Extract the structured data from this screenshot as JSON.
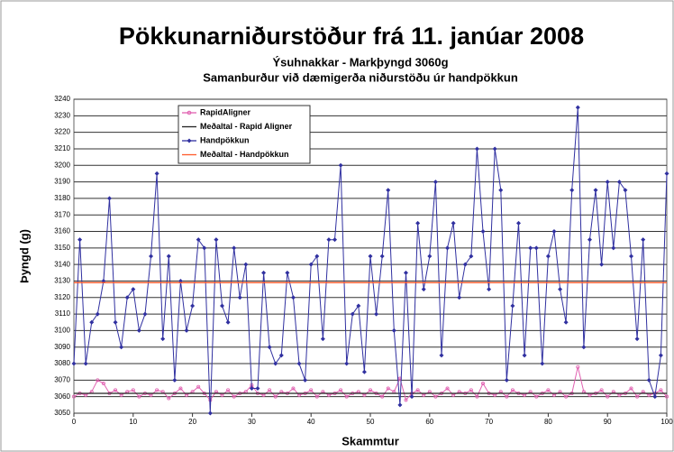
{
  "chart_data": {
    "type": "line",
    "title": "Pökkunarniðurstöður frá 11. janúar 2008",
    "subtitle": [
      "Ýsuhnakkar - Markþyngd 3060g",
      "Samanburður við dæmigerða niðurstöðu úr handpökkun"
    ],
    "xlabel": "Skammtur",
    "ylabel": "Þyngd (g)",
    "x": [
      0,
      1,
      2,
      3,
      4,
      5,
      6,
      7,
      8,
      9,
      10,
      11,
      12,
      13,
      14,
      15,
      16,
      17,
      18,
      19,
      20,
      21,
      22,
      23,
      24,
      25,
      26,
      27,
      28,
      29,
      30,
      31,
      32,
      33,
      34,
      35,
      36,
      37,
      38,
      39,
      40,
      41,
      42,
      43,
      44,
      45,
      46,
      47,
      48,
      49,
      50,
      51,
      52,
      53,
      54,
      55,
      56,
      57,
      58,
      59,
      60,
      61,
      62,
      63,
      64,
      65,
      66,
      67,
      68,
      69,
      70,
      71,
      72,
      73,
      74,
      75,
      76,
      77,
      78,
      79,
      80,
      81,
      82,
      83,
      84,
      85,
      86,
      87,
      88,
      89,
      90,
      91,
      92,
      93,
      94,
      95,
      96,
      97,
      98,
      99,
      100
    ],
    "series": [
      {
        "name": "RapidAligner",
        "color": "#e060b0",
        "marker": "circle",
        "values": [
          3060,
          3062,
          3061,
          3063,
          3070,
          3068,
          3062,
          3064,
          3061,
          3063,
          3064,
          3060,
          3062,
          3061,
          3064,
          3063,
          3059,
          3062,
          3065,
          3061,
          3063,
          3066,
          3062,
          3058,
          3063,
          3061,
          3064,
          3060,
          3062,
          3063,
          3067,
          3062,
          3061,
          3064,
          3060,
          3063,
          3062,
          3065,
          3061,
          3062,
          3064,
          3060,
          3063,
          3061,
          3062,
          3064,
          3060,
          3062,
          3063,
          3061,
          3064,
          3062,
          3060,
          3065,
          3063,
          3071,
          3058,
          3062,
          3064,
          3061,
          3063,
          3060,
          3062,
          3065,
          3061,
          3063,
          3062,
          3064,
          3060,
          3068,
          3062,
          3061,
          3063,
          3060,
          3064,
          3062,
          3061,
          3063,
          3060,
          3062,
          3064,
          3061,
          3063,
          3060,
          3062,
          3078,
          3063,
          3061,
          3062,
          3064,
          3060,
          3063,
          3061,
          3062,
          3065,
          3060,
          3063,
          3061,
          3062,
          3064,
          3060
        ]
      },
      {
        "name": "Meðaltal - Rapid Aligner",
        "color": "#222222",
        "x": [
          0,
          100
        ],
        "values": [
          3062,
          3062
        ]
      },
      {
        "name": "Handpökkun",
        "color": "#3030a0",
        "marker": "diamond",
        "values": [
          3080,
          3155,
          3080,
          3105,
          3110,
          3130,
          3180,
          3105,
          3090,
          3120,
          3125,
          3100,
          3110,
          3145,
          3195,
          3095,
          3145,
          3070,
          3130,
          3100,
          3115,
          3155,
          3150,
          3050,
          3155,
          3115,
          3105,
          3150,
          3120,
          3140,
          3065,
          3065,
          3135,
          3090,
          3080,
          3085,
          3135,
          3120,
          3080,
          3070,
          3140,
          3145,
          3095,
          3155,
          3155,
          3200,
          3080,
          3110,
          3115,
          3075,
          3145,
          3110,
          3145,
          3185,
          3100,
          3055,
          3135,
          3060,
          3165,
          3125,
          3145,
          3190,
          3085,
          3150,
          3165,
          3120,
          3140,
          3145,
          3210,
          3160,
          3125,
          3210,
          3185,
          3070,
          3115,
          3165,
          3085,
          3150,
          3150,
          3080,
          3145,
          3160,
          3125,
          3105,
          3185,
          3235,
          3090,
          3155,
          3185,
          3140,
          3190,
          3150,
          3190,
          3185,
          3145,
          3095,
          3155,
          3070,
          3060,
          3085,
          3195
        ]
      },
      {
        "name": "Meðaltal - Handpökkun",
        "color": "#ff5a2a",
        "x": [
          0,
          100
        ],
        "values": [
          3129,
          3129
        ]
      }
    ],
    "xlim": [
      0,
      100
    ],
    "xticks": [
      0,
      10,
      20,
      30,
      40,
      50,
      60,
      70,
      80,
      90,
      100
    ],
    "ylim": [
      3050,
      3240
    ],
    "yticks": [
      3050,
      3060,
      3070,
      3080,
      3090,
      3100,
      3110,
      3120,
      3130,
      3140,
      3150,
      3160,
      3170,
      3180,
      3190,
      3200,
      3210,
      3220,
      3230,
      3240
    ],
    "grid": true,
    "legend": "upper left"
  }
}
